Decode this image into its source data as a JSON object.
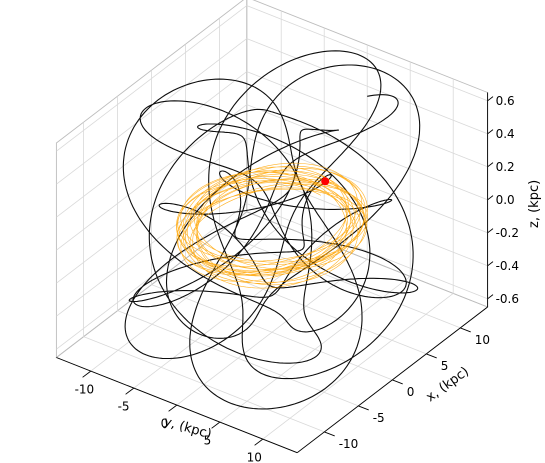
{
  "chart_data": {
    "type": "line3d",
    "title": "",
    "xlabel": "x, (kpc)",
    "ylabel": "y, (kpc)",
    "zlabel": "z, (kpc)",
    "xlim": [
      -14,
      14
    ],
    "ylim": [
      -14,
      14
    ],
    "zlim": [
      -0.65,
      0.65
    ],
    "x_ticks": [
      "-10",
      "-5",
      "0",
      "5",
      "10"
    ],
    "y_ticks": [
      "-10",
      "-5",
      "0",
      "5",
      "10"
    ],
    "z_ticks": [
      "-0.6",
      "-0.4",
      "-0.2",
      "0.0",
      "0.2",
      "0.4",
      "0.6"
    ],
    "grid": true,
    "series": [
      {
        "color": "#000000",
        "orbit": {
          "R_mean": 8.5,
          "R_amp": 5.5,
          "z_amp": 0.6,
          "turns": 12
        }
      },
      {
        "color": "#ffa500",
        "orbit": {
          "R_mean": 8.0,
          "R_amp": 1.0,
          "z_amp": 0.05,
          "turns": 20
        }
      }
    ],
    "marker": {
      "color": "#ff0000",
      "x": 8.2,
      "y": -0.3,
      "z": 0.0
    }
  }
}
